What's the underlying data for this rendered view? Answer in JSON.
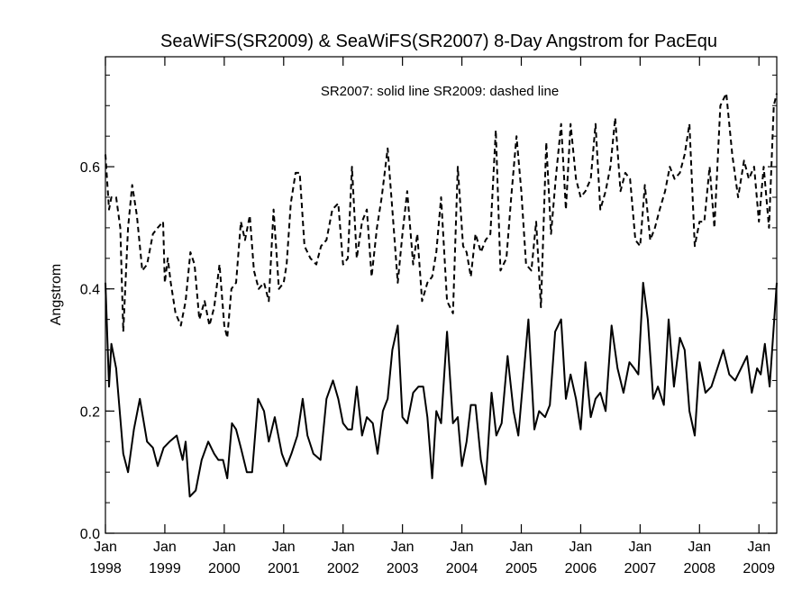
{
  "chart_data": {
    "type": "line",
    "title": "SeaWiFS(SR2009) & SeaWiFS(SR2007) 8-Day Angstrom for PacEqu",
    "xlabel": "",
    "ylabel": "Angstrom",
    "annotation": "SR2007: solid line   SR2009: dashed line",
    "xlim": [
      1998.0,
      2009.3
    ],
    "ylim": [
      0.0,
      0.78
    ],
    "y_ticks": [
      0.0,
      0.2,
      0.4,
      0.6
    ],
    "y_tick_labels": [
      "0.0",
      "0.2",
      "0.4",
      "0.6"
    ],
    "x_ticks": [
      1998,
      1999,
      2000,
      2001,
      2002,
      2003,
      2004,
      2005,
      2006,
      2007,
      2008,
      2009
    ],
    "x_tick_month": "Jan",
    "x_tick_years": [
      "1998",
      "1999",
      "2000",
      "2001",
      "2002",
      "2003",
      "2004",
      "2005",
      "2006",
      "2007",
      "2008",
      "2009"
    ],
    "grid": false,
    "series": [
      {
        "style": "solid",
        "color": "#000000",
        "x": [
          1998.0,
          1998.06,
          1998.1,
          1998.18,
          1998.3,
          1998.38,
          1998.48,
          1998.58,
          1998.7,
          1998.8,
          1998.88,
          1998.98,
          1999.08,
          1999.2,
          1999.3,
          1999.35,
          1999.42,
          1999.52,
          1999.62,
          1999.73,
          1999.83,
          1999.9,
          1999.98,
          2000.05,
          2000.13,
          2000.2,
          2000.28,
          2000.38,
          2000.47,
          2000.57,
          2000.67,
          2000.75,
          2000.85,
          2000.97,
          2001.05,
          2001.13,
          2001.23,
          2001.32,
          2001.4,
          2001.5,
          2001.62,
          2001.72,
          2001.83,
          2001.92,
          2002.0,
          2002.08,
          2002.15,
          2002.23,
          2002.32,
          2002.4,
          2002.5,
          2002.58,
          2002.67,
          2002.75,
          2002.83,
          2002.92,
          2003.0,
          2003.08,
          2003.18,
          2003.27,
          2003.35,
          2003.42,
          2003.5,
          2003.57,
          2003.65,
          2003.75,
          2003.85,
          2003.93,
          2004.0,
          2004.08,
          2004.15,
          2004.23,
          2004.32,
          2004.4,
          2004.5,
          2004.58,
          2004.67,
          2004.77,
          2004.87,
          2004.95,
          2005.03,
          2005.12,
          2005.22,
          2005.3,
          2005.4,
          2005.48,
          2005.57,
          2005.67,
          2005.75,
          2005.83,
          2005.92,
          2006.0,
          2006.08,
          2006.17,
          2006.25,
          2006.33,
          2006.42,
          2006.52,
          2006.62,
          2006.72,
          2006.82,
          2006.9,
          2006.97,
          2007.05,
          2007.13,
          2007.22,
          2007.3,
          2007.4,
          2007.48,
          2007.57,
          2007.67,
          2007.75,
          2007.83,
          2007.92,
          2008.0,
          2008.1,
          2008.2,
          2008.3,
          2008.4,
          2008.5,
          2008.6,
          2008.7,
          2008.8,
          2008.88,
          2008.97,
          2009.03,
          2009.1,
          2009.18,
          2009.3
        ],
        "y": [
          0.41,
          0.24,
          0.31,
          0.27,
          0.13,
          0.1,
          0.17,
          0.22,
          0.15,
          0.14,
          0.11,
          0.14,
          0.15,
          0.16,
          0.12,
          0.15,
          0.06,
          0.07,
          0.12,
          0.15,
          0.13,
          0.12,
          0.12,
          0.09,
          0.18,
          0.17,
          0.14,
          0.1,
          0.1,
          0.22,
          0.2,
          0.15,
          0.19,
          0.13,
          0.11,
          0.13,
          0.16,
          0.22,
          0.16,
          0.13,
          0.12,
          0.22,
          0.25,
          0.22,
          0.18,
          0.17,
          0.17,
          0.24,
          0.16,
          0.19,
          0.18,
          0.13,
          0.2,
          0.22,
          0.3,
          0.34,
          0.19,
          0.18,
          0.23,
          0.24,
          0.24,
          0.19,
          0.09,
          0.2,
          0.18,
          0.33,
          0.18,
          0.19,
          0.11,
          0.15,
          0.21,
          0.21,
          0.12,
          0.08,
          0.23,
          0.16,
          0.18,
          0.29,
          0.2,
          0.16,
          0.25,
          0.35,
          0.17,
          0.2,
          0.19,
          0.21,
          0.33,
          0.35,
          0.22,
          0.26,
          0.22,
          0.17,
          0.28,
          0.19,
          0.22,
          0.23,
          0.2,
          0.34,
          0.27,
          0.23,
          0.28,
          0.27,
          0.26,
          0.41,
          0.35,
          0.22,
          0.24,
          0.21,
          0.35,
          0.24,
          0.32,
          0.3,
          0.2,
          0.16,
          0.28,
          0.23,
          0.24,
          0.27,
          0.3,
          0.26,
          0.25,
          0.27,
          0.29,
          0.23,
          0.27,
          0.26,
          0.31,
          0.24,
          0.41
        ]
      },
      {
        "style": "dashed",
        "color": "#000000",
        "x": [
          1998.0,
          1998.06,
          1998.1,
          1998.18,
          1998.25,
          1998.3,
          1998.38,
          1998.45,
          1998.53,
          1998.62,
          1998.7,
          1998.8,
          1998.88,
          1998.97,
          1999.0,
          1999.05,
          1999.1,
          1999.18,
          1999.27,
          1999.35,
          1999.43,
          1999.5,
          1999.58,
          1999.67,
          1999.75,
          1999.83,
          1999.92,
          2000.0,
          2000.05,
          2000.12,
          2000.2,
          2000.28,
          2000.35,
          2000.43,
          2000.5,
          2000.58,
          2000.67,
          2000.75,
          2000.83,
          2000.92,
          2001.0,
          2001.05,
          2001.12,
          2001.2,
          2001.27,
          2001.35,
          2001.45,
          2001.55,
          2001.63,
          2001.72,
          2001.82,
          2001.92,
          2002.0,
          2002.08,
          2002.15,
          2002.23,
          2002.32,
          2002.4,
          2002.48,
          2002.57,
          2002.65,
          2002.75,
          2002.83,
          2002.92,
          2003.0,
          2003.08,
          2003.18,
          2003.25,
          2003.33,
          2003.42,
          2003.5,
          2003.57,
          2003.65,
          2003.75,
          2003.85,
          2003.93,
          2004.02,
          2004.08,
          2004.15,
          2004.23,
          2004.32,
          2004.4,
          2004.48,
          2004.57,
          2004.65,
          2004.75,
          2004.83,
          2004.92,
          2005.0,
          2005.08,
          2005.17,
          2005.25,
          2005.33,
          2005.42,
          2005.5,
          2005.58,
          2005.67,
          2005.75,
          2005.83,
          2005.92,
          2006.0,
          2006.08,
          2006.17,
          2006.25,
          2006.33,
          2006.42,
          2006.5,
          2006.58,
          2006.67,
          2006.75,
          2006.83,
          2006.92,
          2007.0,
          2007.08,
          2007.17,
          2007.25,
          2007.33,
          2007.42,
          2007.5,
          2007.58,
          2007.67,
          2007.75,
          2007.83,
          2007.92,
          2008.0,
          2008.08,
          2008.17,
          2008.25,
          2008.35,
          2008.45,
          2008.55,
          2008.65,
          2008.75,
          2008.83,
          2008.92,
          2009.0,
          2009.08,
          2009.17,
          2009.25,
          2009.3
        ],
        "y": [
          0.62,
          0.53,
          0.55,
          0.55,
          0.5,
          0.33,
          0.5,
          0.57,
          0.52,
          0.43,
          0.44,
          0.49,
          0.5,
          0.51,
          0.41,
          0.45,
          0.41,
          0.36,
          0.34,
          0.38,
          0.46,
          0.44,
          0.35,
          0.38,
          0.34,
          0.37,
          0.44,
          0.34,
          0.32,
          0.4,
          0.41,
          0.51,
          0.48,
          0.52,
          0.43,
          0.4,
          0.41,
          0.38,
          0.53,
          0.4,
          0.41,
          0.44,
          0.54,
          0.59,
          0.59,
          0.47,
          0.45,
          0.44,
          0.47,
          0.48,
          0.53,
          0.54,
          0.44,
          0.45,
          0.6,
          0.45,
          0.51,
          0.53,
          0.42,
          0.5,
          0.55,
          0.63,
          0.53,
          0.41,
          0.49,
          0.56,
          0.44,
          0.49,
          0.38,
          0.41,
          0.42,
          0.46,
          0.55,
          0.38,
          0.36,
          0.6,
          0.47,
          0.46,
          0.42,
          0.49,
          0.46,
          0.48,
          0.49,
          0.66,
          0.43,
          0.45,
          0.55,
          0.65,
          0.56,
          0.44,
          0.43,
          0.51,
          0.37,
          0.64,
          0.49,
          0.58,
          0.67,
          0.53,
          0.67,
          0.58,
          0.55,
          0.56,
          0.58,
          0.67,
          0.53,
          0.56,
          0.6,
          0.68,
          0.56,
          0.59,
          0.58,
          0.48,
          0.47,
          0.57,
          0.48,
          0.5,
          0.53,
          0.56,
          0.6,
          0.58,
          0.59,
          0.62,
          0.67,
          0.47,
          0.51,
          0.51,
          0.6,
          0.5,
          0.7,
          0.72,
          0.62,
          0.55,
          0.61,
          0.58,
          0.6,
          0.51,
          0.6,
          0.5,
          0.7,
          0.72
        ]
      }
    ]
  }
}
